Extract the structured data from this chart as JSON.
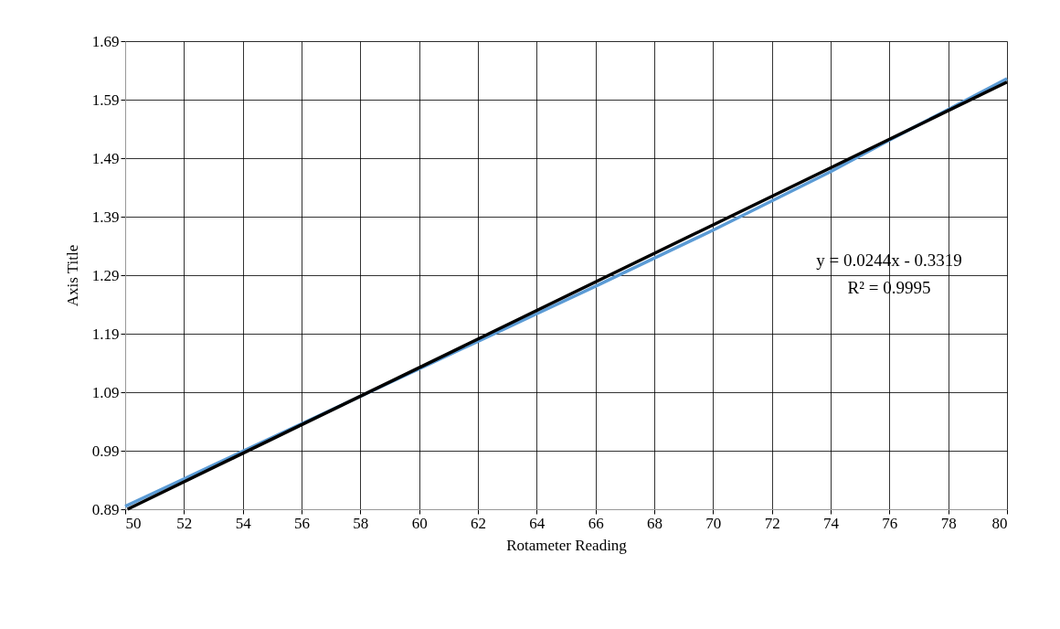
{
  "chart_data": {
    "type": "line",
    "xlabel": "Rotameter Reading",
    "ylabel": "Axis Title",
    "x": [
      50,
      52,
      54,
      56,
      58,
      60,
      62,
      64,
      66,
      68,
      70,
      72,
      74,
      76,
      78,
      80
    ],
    "series": [
      {
        "color": "#5b9bd5",
        "values": [
          0.895,
          0.942,
          0.989,
          1.036,
          1.083,
          1.13,
          1.177,
          1.224,
          1.271,
          1.319,
          1.367,
          1.417,
          1.467,
          1.521,
          1.573,
          1.626
        ]
      },
      {
        "type": "line",
        "color": "#000000",
        "x": [
          50.08,
          80
        ],
        "values": [
          0.89,
          1.62
        ]
      }
    ],
    "xlim": [
      50,
      80
    ],
    "xticks": [
      50,
      52,
      54,
      56,
      58,
      60,
      62,
      64,
      66,
      68,
      70,
      72,
      74,
      76,
      78,
      80
    ],
    "ylim": [
      0.89,
      1.69
    ],
    "yticks": [
      0.89,
      0.99,
      1.09,
      1.19,
      1.29,
      1.39,
      1.49,
      1.59,
      1.69
    ],
    "grid": true,
    "marker": "none",
    "line_style": "solid",
    "annotations": [
      "y = 0.0244x - 0.3319",
      "R² = 0.9995"
    ]
  }
}
